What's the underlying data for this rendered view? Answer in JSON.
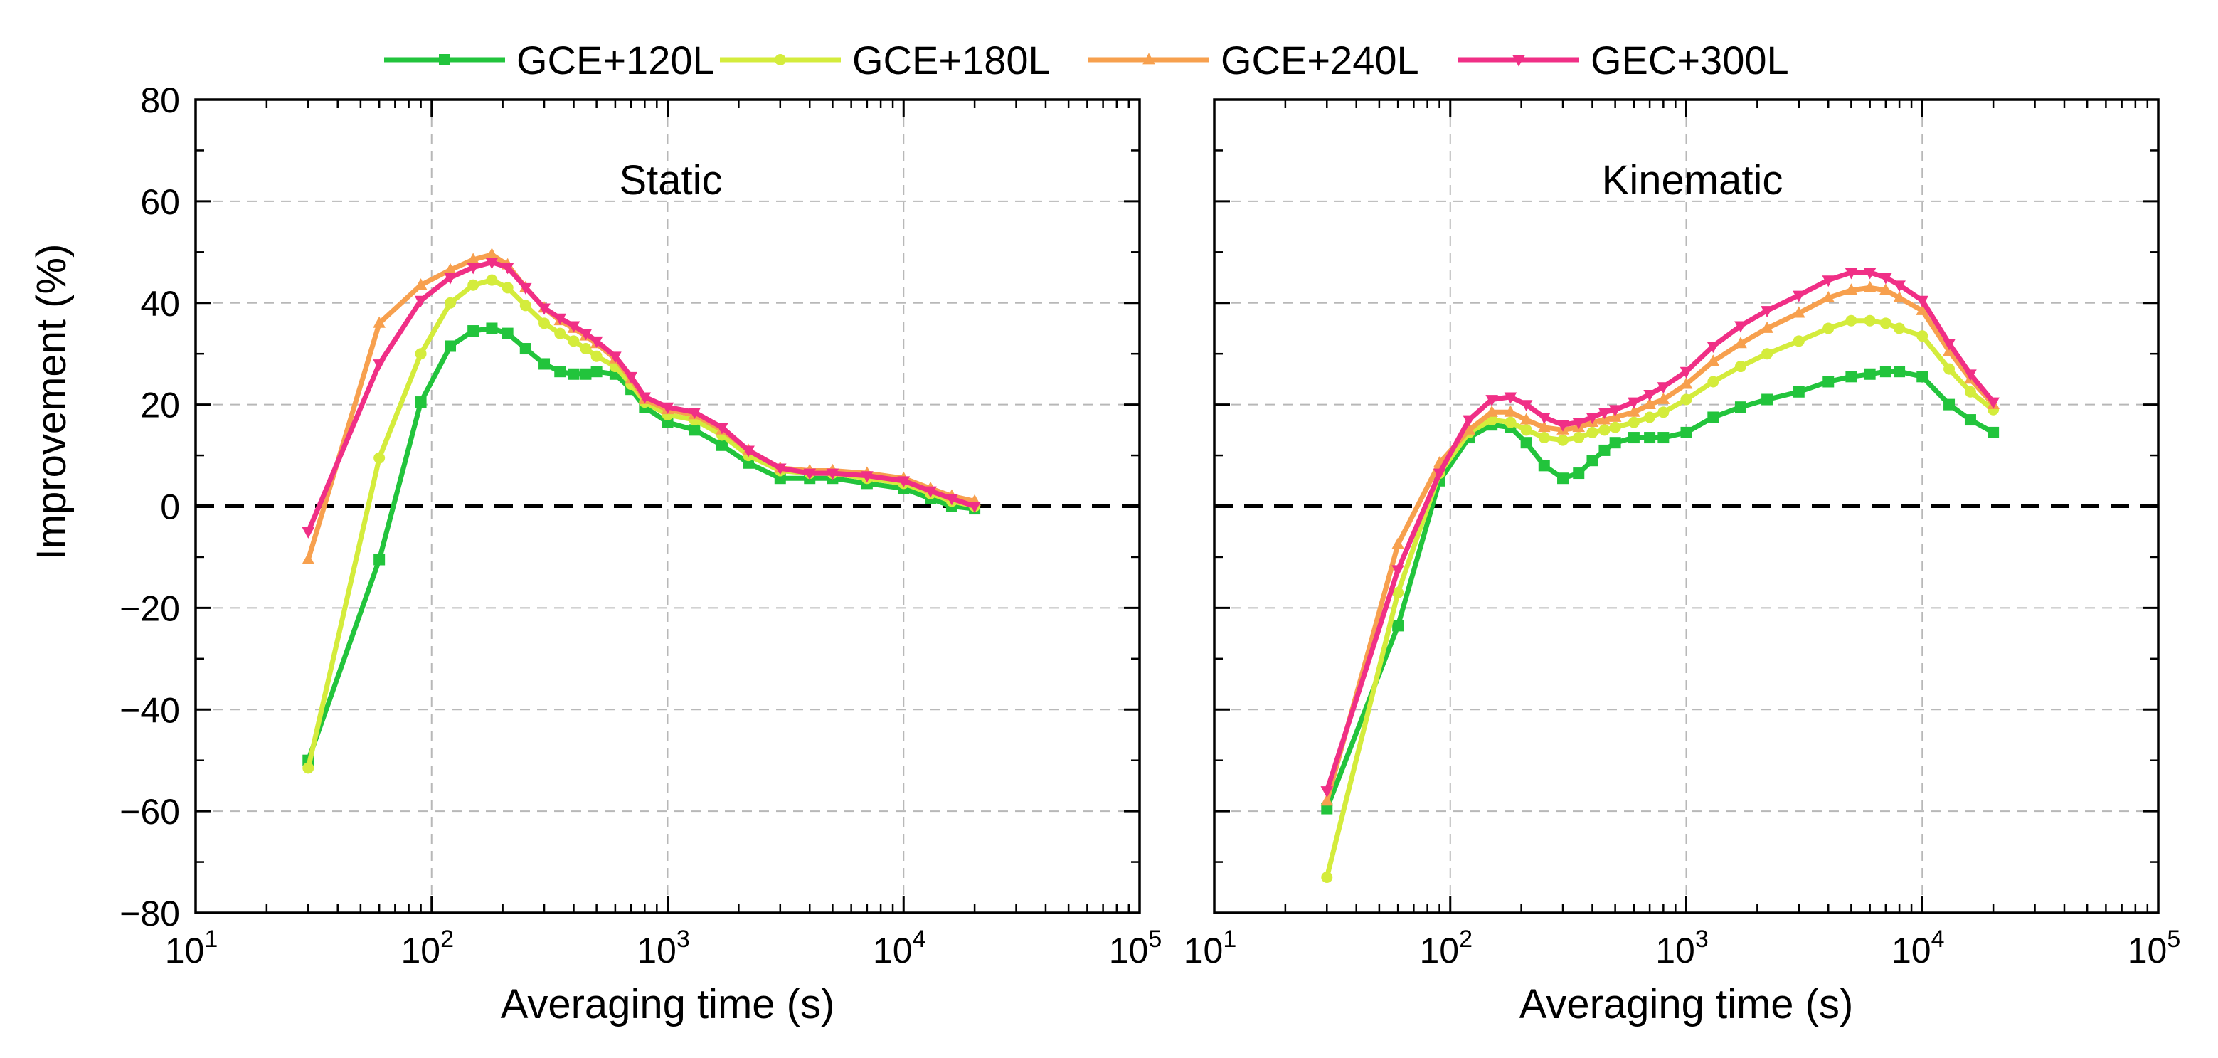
{
  "chart_data": {
    "type": "line",
    "ylabel": "Improvement (%)",
    "xlabel": "Averaging time (s)",
    "xscale": "log",
    "xlim": [
      10,
      100000
    ],
    "ylim": [
      -80,
      80
    ],
    "xticks": [
      {
        "value": 10,
        "base": "10",
        "exp": "1"
      },
      {
        "value": 100,
        "base": "10",
        "exp": "2"
      },
      {
        "value": 1000,
        "base": "10",
        "exp": "3"
      },
      {
        "value": 10000,
        "base": "10",
        "exp": "4"
      },
      {
        "value": 100000,
        "base": "10",
        "exp": "5"
      }
    ],
    "yticks": [
      "80",
      "60",
      "40",
      "20",
      "0",
      "−20",
      "−40",
      "−60",
      "−80"
    ],
    "grid": true,
    "legend_position": "top-center",
    "legend": [
      {
        "name": "GCE+120L",
        "color": "#22c43c",
        "marker": "square"
      },
      {
        "name": "GCE+180L",
        "color": "#d4ec3c",
        "marker": "circle"
      },
      {
        "name": "GCE+240L",
        "color": "#f7a04e",
        "marker": "triangle-up"
      },
      {
        "name": "GEC+300L",
        "color": "#f02f86",
        "marker": "triangle-down"
      }
    ],
    "panels": [
      {
        "title": "Static",
        "series": [
          {
            "name": "GCE+120L",
            "x": [
              30,
              60,
              90,
              120,
              150,
              180,
              210,
              250,
              300,
              350,
              400,
              450,
              500,
              600,
              700,
              800,
              1000,
              1300,
              1700,
              2200,
              3000,
              4000,
              5000,
              7000,
              10000,
              13000,
              16000,
              20000
            ],
            "y": [
              -50,
              -10.5,
              20.5,
              31.5,
              34.5,
              35,
              34,
              31,
              28,
              26.5,
              26,
              26,
              26.5,
              26,
              23,
              19.5,
              16.5,
              15,
              12,
              8.5,
              5.5,
              5.5,
              5.5,
              4.5,
              3.5,
              1.5,
              0,
              -0.5
            ]
          },
          {
            "name": "GCE+180L",
            "x": [
              30,
              60,
              90,
              120,
              150,
              180,
              210,
              250,
              300,
              350,
              400,
              450,
              500,
              600,
              700,
              800,
              1000,
              1300,
              1700,
              2200,
              3000,
              4000,
              5000,
              7000,
              10000,
              13000,
              16000,
              20000
            ],
            "y": [
              -51.5,
              9.5,
              30,
              40,
              43.5,
              44.5,
              43,
              39.5,
              36,
              34,
              32.5,
              31,
              29.5,
              27.5,
              24,
              20.5,
              18,
              17,
              14,
              10,
              7,
              6.5,
              6.5,
              5.5,
              4.5,
              2.5,
              1,
              0
            ]
          },
          {
            "name": "GCE+240L",
            "x": [
              30,
              60,
              90,
              120,
              150,
              180,
              210,
              250,
              300,
              350,
              400,
              450,
              500,
              600,
              700,
              800,
              1000,
              1300,
              1700,
              2200,
              3000,
              4000,
              5000,
              7000,
              10000,
              13000,
              16000,
              20000
            ],
            "y": [
              -10.5,
              36,
              43.5,
              46.5,
              48.5,
              49.5,
              47.5,
              43,
              39,
              36.5,
              35,
              33.5,
              32,
              29,
              25,
              21,
              19,
              18,
              15,
              11,
              7.5,
              7,
              7,
              6.5,
              5.5,
              3.5,
              2,
              1
            ]
          },
          {
            "name": "GEC+300L",
            "x": [
              30,
              60,
              90,
              120,
              150,
              180,
              210,
              250,
              300,
              350,
              400,
              450,
              500,
              600,
              700,
              800,
              1000,
              1300,
              1700,
              2200,
              3000,
              4000,
              5000,
              7000,
              10000,
              13000,
              16000,
              20000
            ],
            "y": [
              -5,
              28,
              40.5,
              45,
              47,
              48,
              47,
              43,
              39,
              37,
              35.5,
              34,
              32.5,
              29.5,
              25.5,
              21.5,
              19.5,
              18.5,
              15.5,
              11,
              7.5,
              6.5,
              6.5,
              6,
              5,
              3,
              1.5,
              0
            ]
          }
        ]
      },
      {
        "title": "Kinematic",
        "series": [
          {
            "name": "GCE+120L",
            "x": [
              30,
              60,
              90,
              120,
              150,
              180,
              210,
              250,
              300,
              350,
              400,
              450,
              500,
              600,
              700,
              800,
              1000,
              1300,
              1700,
              2200,
              3000,
              4000,
              5000,
              6000,
              7000,
              8000,
              10000,
              13000,
              16000,
              20000
            ],
            "y": [
              -59.5,
              -23.5,
              5,
              13.5,
              16,
              15.5,
              12.5,
              8,
              5.5,
              6.5,
              9,
              11,
              12.5,
              13.5,
              13.5,
              13.5,
              14.5,
              17.5,
              19.5,
              21,
              22.5,
              24.5,
              25.5,
              26,
              26.5,
              26.5,
              25.5,
              20,
              17,
              14.5
            ]
          },
          {
            "name": "GCE+180L",
            "x": [
              30,
              60,
              90,
              120,
              150,
              180,
              210,
              250,
              300,
              350,
              400,
              450,
              500,
              600,
              700,
              800,
              1000,
              1300,
              1700,
              2200,
              3000,
              4000,
              5000,
              6000,
              7000,
              8000,
              10000,
              13000,
              16000,
              20000
            ],
            "y": [
              -73,
              -17,
              6.5,
              14.5,
              17,
              16.5,
              15,
              13.5,
              13,
              13.5,
              14.5,
              15,
              15.5,
              16.5,
              17.5,
              18.5,
              21,
              24.5,
              27.5,
              30,
              32.5,
              35,
              36.5,
              36.5,
              36,
              35,
              33.5,
              27,
              22.5,
              19
            ]
          },
          {
            "name": "GCE+240L",
            "x": [
              30,
              60,
              90,
              120,
              150,
              180,
              210,
              250,
              300,
              350,
              400,
              450,
              500,
              600,
              700,
              800,
              1000,
              1300,
              1700,
              2200,
              3000,
              4000,
              5000,
              6000,
              7000,
              8000,
              10000,
              13000,
              16000,
              20000
            ],
            "y": [
              -58,
              -7.5,
              8.5,
              15,
              18.5,
              18.5,
              17,
              15.5,
              15,
              15.5,
              16.5,
              17,
              17.5,
              18.5,
              20,
              21,
              24,
              28.5,
              32,
              35,
              38,
              41,
              42.5,
              43,
              42.5,
              41,
              38.5,
              30.5,
              25,
              20
            ]
          },
          {
            "name": "GEC+300L",
            "x": [
              30,
              60,
              90,
              120,
              150,
              180,
              210,
              250,
              300,
              350,
              400,
              450,
              500,
              600,
              700,
              800,
              1000,
              1300,
              1700,
              2200,
              3000,
              4000,
              5000,
              6000,
              7000,
              8000,
              10000,
              13000,
              16000,
              20000
            ],
            "y": [
              -56,
              -12.5,
              6.5,
              17,
              21,
              21.5,
              20,
              17.5,
              16,
              16.5,
              17.5,
              18.5,
              19,
              20.5,
              22,
              23.5,
              26.5,
              31.5,
              35.5,
              38.5,
              41.5,
              44.5,
              46,
              46,
              45,
              43.5,
              40.5,
              32,
              26,
              20.5
            ]
          }
        ]
      }
    ]
  }
}
